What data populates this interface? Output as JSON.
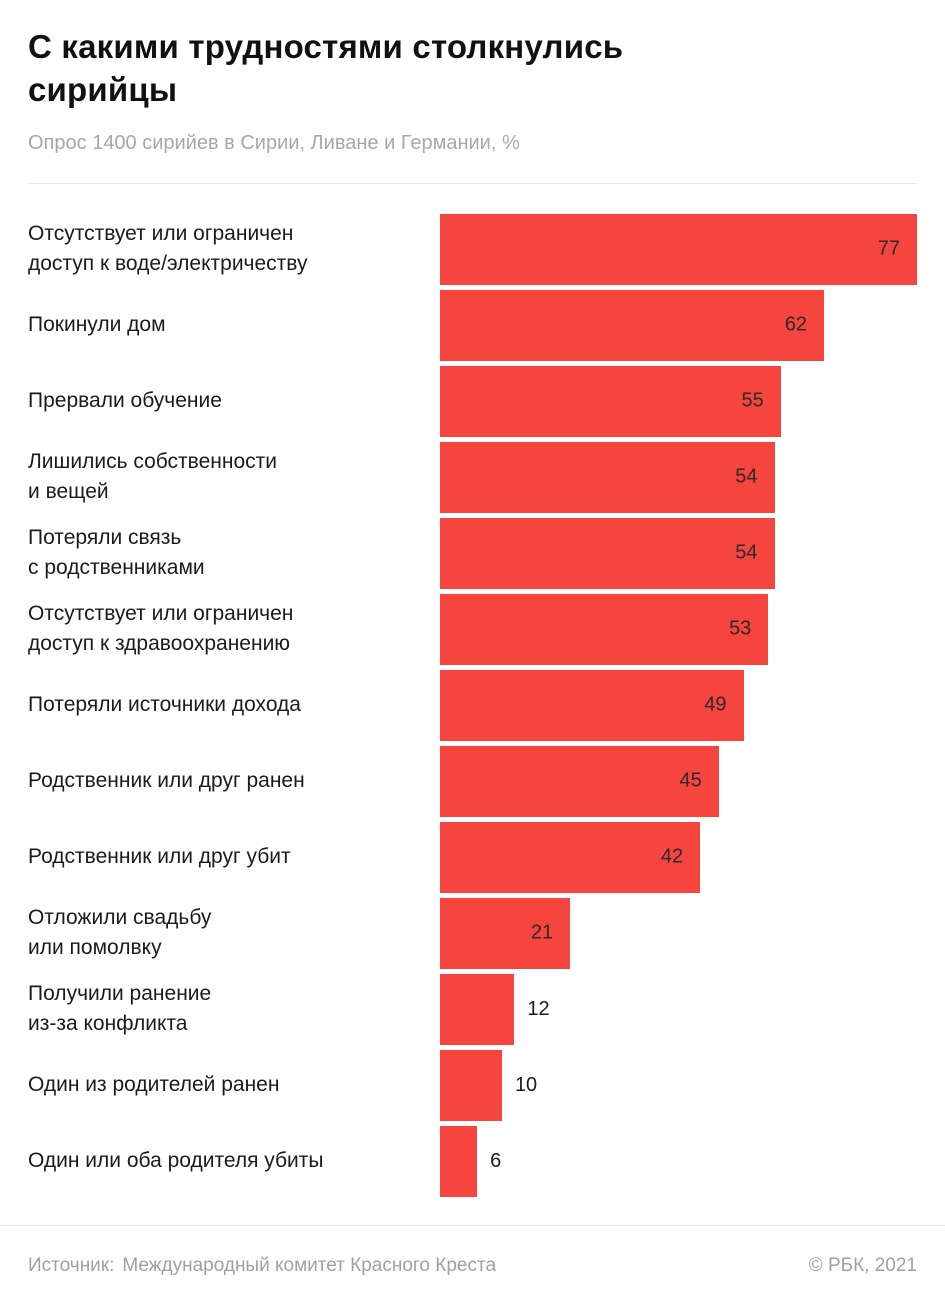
{
  "page": {
    "title": "С какими трудностями столкнулись\nсирийцы",
    "subtitle": "Опрос 1400 сирийев в Сирии, Ливане и Германии, %",
    "footer": {
      "source_label": "Источник:",
      "source_value": "Международный комитет Красного Креста",
      "copyright": "© РБК, 2021"
    }
  },
  "colors": {
    "bar": "#f5453e",
    "title_text": "#111111",
    "subtitle_text": "#a4a8ae",
    "value_text": "#2b2a29",
    "divider": "#e7e7e7"
  },
  "chart_data": {
    "type": "bar",
    "orientation": "horizontal",
    "title": "С какими трудностями столкнулись сирийцы",
    "subtitle": "Опрос 1400 сирийев в Сирии, Ливане и Германии, %",
    "xlabel": "",
    "ylabel": "",
    "xlim": [
      0,
      77
    ],
    "grid": false,
    "legend": false,
    "value_label_inside_threshold": 15,
    "categories": [
      "Отсутствует или ограничен\nдоступ к воде/электричеству",
      "Покинули дом",
      "Прервали обучение",
      "Лишились собственности\nи вещей",
      "Потеряли связь\nс родственниками",
      "Отсутствует или ограничен\nдоступ к здравоохранению",
      "Потеряли источники дохода",
      "Родственник или друг ранен",
      "Родственник или друг убит",
      "Отложили свадьбу\nили помолвку",
      "Получили ранение\nиз-за конфликта",
      "Один из родителей ранен",
      "Один или оба родителя убиты"
    ],
    "values": [
      77,
      62,
      55,
      54,
      54,
      53,
      49,
      45,
      42,
      21,
      12,
      10,
      6
    ]
  }
}
